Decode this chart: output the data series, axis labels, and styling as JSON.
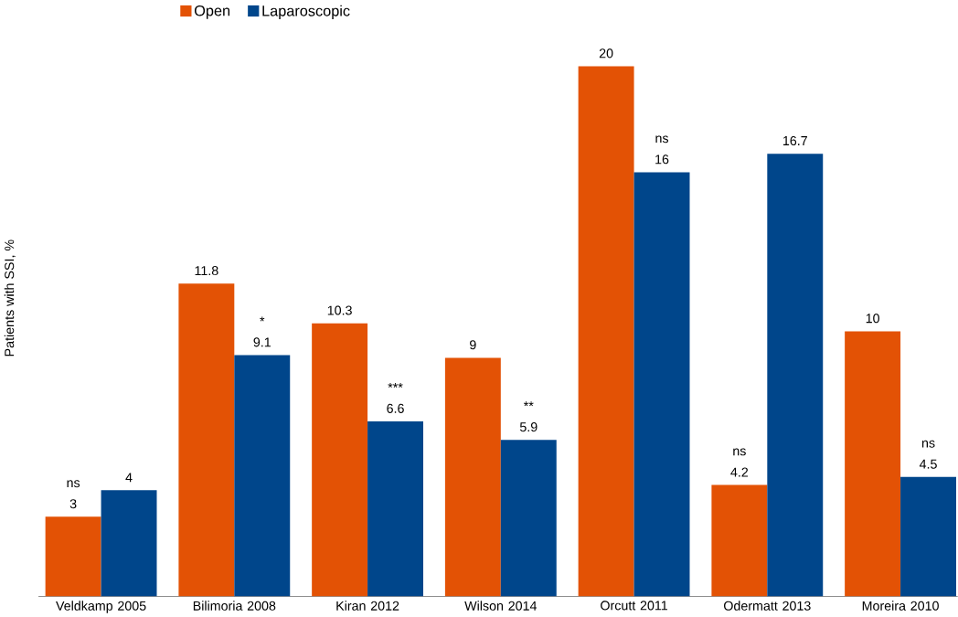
{
  "chart_data": {
    "type": "bar",
    "ylabel": "Patients with SSI, %",
    "categories": [
      "Veldkamp 2005",
      "Bilimoria 2008",
      "Kiran 2012",
      "Wilson 2014",
      "Orcutt 2011",
      "Odermatt 2013",
      "Moreira 2010"
    ],
    "series": [
      {
        "name": "Open",
        "color": "#e35205",
        "values": [
          3,
          11.8,
          10.3,
          9,
          20,
          4.2,
          10
        ]
      },
      {
        "name": "Laparoscopic",
        "color": "#00468b",
        "values": [
          4,
          9.1,
          6.6,
          5.9,
          16,
          16.7,
          4.5
        ]
      }
    ],
    "data_labels": true,
    "legend": "top left",
    "annotations": [
      "ns",
      "*",
      "***",
      "**",
      "ns",
      "ns",
      "ns"
    ]
  }
}
